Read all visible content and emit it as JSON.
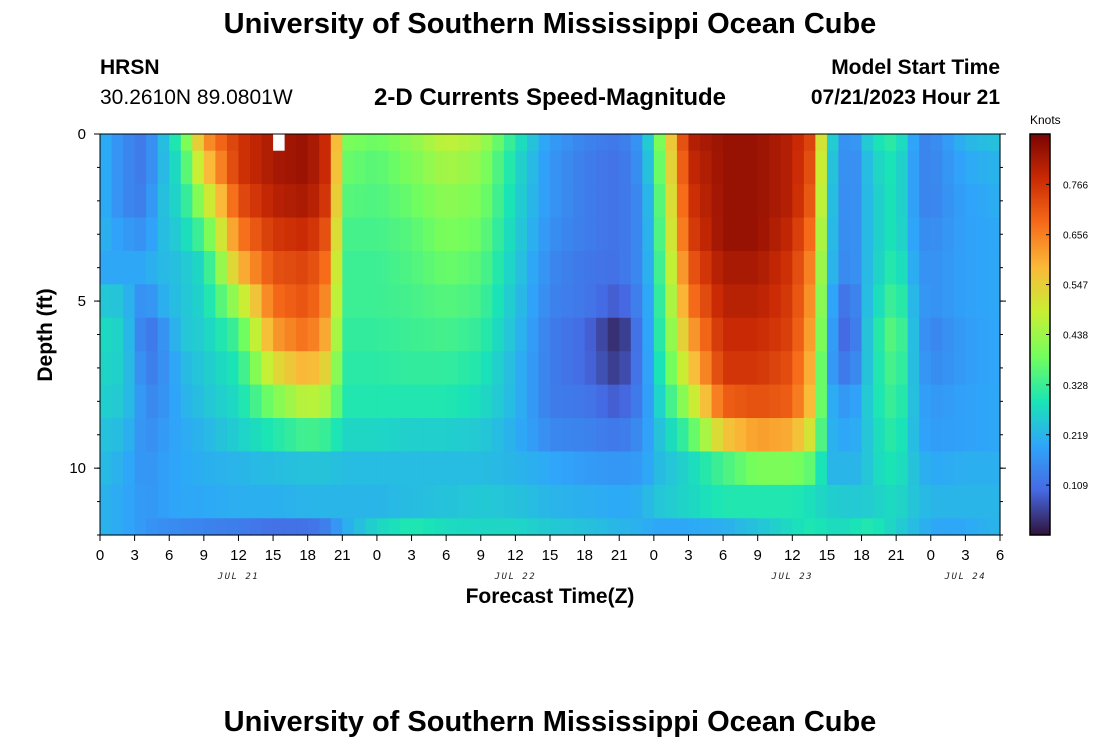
{
  "header": {
    "title": "University of Southern Mississippi Ocean Cube",
    "station": "HRSN",
    "coordinates": "30.2610N  89.0801W",
    "subtitle": "2-D Currents Speed-Magnitude",
    "model_start_label": "Model Start Time",
    "model_start_value": "07/21/2023 Hour 21"
  },
  "footer": {
    "title": "University of Southern Mississippi Ocean Cube"
  },
  "chart_data": {
    "type": "heatmap",
    "title": "2-D Currents Speed-Magnitude",
    "xlabel": "Forecast Time(Z)",
    "ylabel": "Depth (ft)",
    "x_ticks": [
      "0",
      "3",
      "6",
      "9",
      "12",
      "15",
      "18",
      "21",
      "0",
      "3",
      "6",
      "9",
      "12",
      "15",
      "18",
      "21",
      "0",
      "3",
      "6",
      "9",
      "12",
      "15",
      "18",
      "21",
      "0",
      "3",
      "6"
    ],
    "date_labels": [
      {
        "label": "JUL 21",
        "tick_index": 4
      },
      {
        "label": "JUL 22",
        "tick_index": 12
      },
      {
        "label": "JUL 23",
        "tick_index": 20
      },
      {
        "label": "JUL 24",
        "tick_index": 25
      }
    ],
    "time_range_hours": [
      0,
      78
    ],
    "y_ticks": [
      0,
      5,
      10
    ],
    "ylim": [
      0,
      12
    ],
    "depths_ft": [
      0,
      1,
      2,
      3,
      4,
      5,
      6,
      7,
      8,
      9,
      10,
      11,
      12
    ],
    "colorbar": {
      "label": "Knots",
      "range": [
        0,
        0.876
      ],
      "ticks": [
        "0.109",
        "0.219",
        "0.328",
        "0.438",
        "0.547",
        "0.656",
        "0.766"
      ],
      "colors": [
        "#30123b",
        "#4669e3",
        "#2fa5fa",
        "#1ae4b6",
        "#72fe5e",
        "#c8ef34",
        "#faba39",
        "#f66b19",
        "#ca2a04",
        "#7a0403"
      ]
    },
    "time_step_hours": 1,
    "anchor_hours": [
      0,
      2,
      4,
      5,
      7,
      9,
      12,
      15,
      18,
      20,
      21,
      24,
      27,
      30,
      33,
      36,
      39,
      42,
      45,
      47,
      48,
      51,
      54,
      57,
      60,
      62,
      63,
      65,
      66,
      67,
      69,
      71,
      72,
      75,
      78
    ],
    "anchor_values": [
      [
        0.22,
        0.15,
        0.12,
        0.2,
        0.33,
        0.62,
        0.76,
        0.82,
        0.84,
        0.76,
        0.4,
        0.38,
        0.42,
        0.48,
        0.45,
        0.3,
        0.18,
        0.14,
        0.12,
        0.18,
        0.32,
        0.8,
        0.84,
        0.84,
        0.8,
        0.72,
        0.3,
        0.12,
        0.22,
        0.28,
        0.32,
        0.15,
        0.14,
        0.22,
        0.24
      ],
      [
        0.22,
        0.15,
        0.12,
        0.2,
        0.3,
        0.55,
        0.76,
        0.82,
        0.84,
        0.76,
        0.38,
        0.36,
        0.4,
        0.45,
        0.42,
        0.28,
        0.17,
        0.13,
        0.11,
        0.17,
        0.3,
        0.78,
        0.84,
        0.84,
        0.8,
        0.7,
        0.28,
        0.12,
        0.2,
        0.26,
        0.3,
        0.15,
        0.14,
        0.2,
        0.22
      ],
      [
        0.22,
        0.15,
        0.13,
        0.22,
        0.28,
        0.45,
        0.72,
        0.8,
        0.82,
        0.74,
        0.36,
        0.35,
        0.38,
        0.42,
        0.4,
        0.27,
        0.17,
        0.13,
        0.11,
        0.16,
        0.28,
        0.76,
        0.84,
        0.84,
        0.8,
        0.68,
        0.27,
        0.12,
        0.2,
        0.25,
        0.3,
        0.15,
        0.14,
        0.19,
        0.21
      ],
      [
        0.22,
        0.18,
        0.16,
        0.22,
        0.26,
        0.35,
        0.66,
        0.76,
        0.78,
        0.7,
        0.34,
        0.34,
        0.36,
        0.4,
        0.38,
        0.26,
        0.16,
        0.13,
        0.11,
        0.16,
        0.27,
        0.74,
        0.84,
        0.84,
        0.78,
        0.65,
        0.26,
        0.12,
        0.2,
        0.25,
        0.3,
        0.16,
        0.15,
        0.19,
        0.2
      ],
      [
        0.2,
        0.2,
        0.2,
        0.22,
        0.24,
        0.28,
        0.58,
        0.72,
        0.74,
        0.66,
        0.33,
        0.33,
        0.35,
        0.38,
        0.36,
        0.25,
        0.15,
        0.12,
        0.11,
        0.16,
        0.26,
        0.7,
        0.82,
        0.82,
        0.76,
        0.62,
        0.25,
        0.12,
        0.2,
        0.25,
        0.32,
        0.17,
        0.16,
        0.19,
        0.2
      ],
      [
        0.25,
        0.24,
        0.14,
        0.2,
        0.24,
        0.27,
        0.45,
        0.68,
        0.72,
        0.62,
        0.33,
        0.33,
        0.34,
        0.36,
        0.34,
        0.24,
        0.14,
        0.12,
        0.08,
        0.15,
        0.25,
        0.66,
        0.8,
        0.8,
        0.75,
        0.6,
        0.23,
        0.08,
        0.2,
        0.26,
        0.35,
        0.18,
        0.16,
        0.19,
        0.2
      ],
      [
        0.28,
        0.26,
        0.11,
        0.14,
        0.24,
        0.26,
        0.34,
        0.62,
        0.68,
        0.58,
        0.32,
        0.32,
        0.33,
        0.34,
        0.32,
        0.23,
        0.13,
        0.1,
        0.02,
        0.14,
        0.25,
        0.6,
        0.78,
        0.78,
        0.74,
        0.58,
        0.22,
        0.06,
        0.2,
        0.28,
        0.38,
        0.18,
        0.14,
        0.18,
        0.2
      ],
      [
        0.27,
        0.26,
        0.13,
        0.14,
        0.22,
        0.25,
        0.3,
        0.52,
        0.6,
        0.52,
        0.31,
        0.31,
        0.32,
        0.32,
        0.3,
        0.22,
        0.13,
        0.1,
        0.04,
        0.14,
        0.24,
        0.54,
        0.76,
        0.76,
        0.72,
        0.56,
        0.2,
        0.1,
        0.2,
        0.28,
        0.36,
        0.19,
        0.15,
        0.18,
        0.2
      ],
      [
        0.26,
        0.25,
        0.15,
        0.15,
        0.21,
        0.24,
        0.28,
        0.4,
        0.48,
        0.44,
        0.3,
        0.3,
        0.3,
        0.3,
        0.28,
        0.22,
        0.13,
        0.12,
        0.08,
        0.14,
        0.23,
        0.45,
        0.7,
        0.72,
        0.7,
        0.54,
        0.22,
        0.16,
        0.22,
        0.28,
        0.34,
        0.2,
        0.17,
        0.19,
        0.2
      ],
      [
        0.24,
        0.23,
        0.15,
        0.17,
        0.2,
        0.22,
        0.26,
        0.3,
        0.34,
        0.32,
        0.27,
        0.27,
        0.26,
        0.26,
        0.25,
        0.21,
        0.15,
        0.14,
        0.12,
        0.16,
        0.22,
        0.34,
        0.56,
        0.62,
        0.6,
        0.48,
        0.22,
        0.19,
        0.22,
        0.27,
        0.32,
        0.2,
        0.18,
        0.19,
        0.2
      ],
      [
        0.23,
        0.21,
        0.16,
        0.18,
        0.2,
        0.21,
        0.22,
        0.23,
        0.24,
        0.24,
        0.23,
        0.23,
        0.23,
        0.23,
        0.23,
        0.22,
        0.2,
        0.18,
        0.17,
        0.18,
        0.22,
        0.27,
        0.34,
        0.4,
        0.4,
        0.36,
        0.22,
        0.22,
        0.22,
        0.27,
        0.3,
        0.22,
        0.2,
        0.21,
        0.21
      ],
      [
        0.22,
        0.2,
        0.17,
        0.18,
        0.2,
        0.2,
        0.21,
        0.21,
        0.22,
        0.22,
        0.22,
        0.22,
        0.23,
        0.24,
        0.25,
        0.24,
        0.22,
        0.21,
        0.2,
        0.21,
        0.24,
        0.27,
        0.3,
        0.3,
        0.3,
        0.28,
        0.26,
        0.25,
        0.25,
        0.26,
        0.28,
        0.23,
        0.22,
        0.22,
        0.22
      ],
      [
        0.22,
        0.2,
        0.17,
        0.16,
        0.15,
        0.14,
        0.13,
        0.11,
        0.11,
        0.14,
        0.2,
        0.27,
        0.3,
        0.28,
        0.27,
        0.27,
        0.25,
        0.24,
        0.22,
        0.21,
        0.2,
        0.2,
        0.21,
        0.24,
        0.28,
        0.3,
        0.28,
        0.28,
        0.3,
        0.3,
        0.26,
        0.22,
        0.2,
        0.2,
        0.22
      ]
    ],
    "missing_cells": [
      {
        "hour": 15,
        "depth_ft": 0
      }
    ]
  }
}
